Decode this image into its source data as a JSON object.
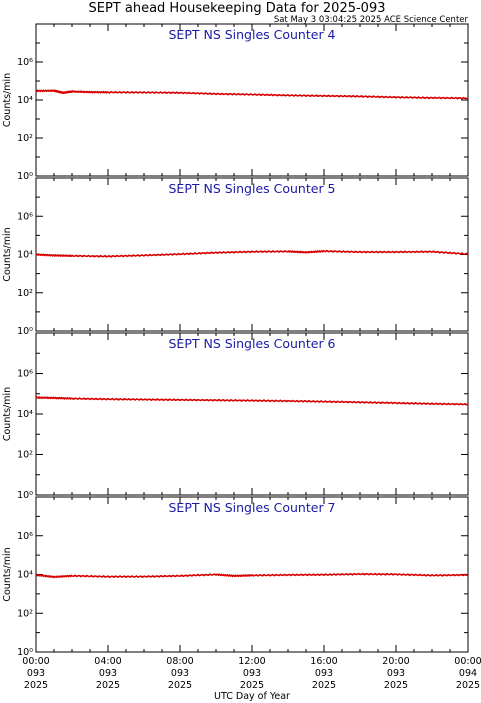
{
  "header": {
    "title": "SEPT ahead Housekeeping Data for 2025-093",
    "subtitle": "Sat May  3 03:04:25 2025 ACE Science Center"
  },
  "colors": {
    "series": "#d60000",
    "panel_title": "#1a1aa6"
  },
  "x_axis": {
    "label": "UTC Day of Year",
    "ticks": [
      {
        "time": "00:00",
        "doy": "093",
        "year": "2025"
      },
      {
        "time": "04:00",
        "doy": "093",
        "year": "2025"
      },
      {
        "time": "08:00",
        "doy": "093",
        "year": "2025"
      },
      {
        "time": "12:00",
        "doy": "093",
        "year": "2025"
      },
      {
        "time": "16:00",
        "doy": "093",
        "year": "2025"
      },
      {
        "time": "20:00",
        "doy": "093",
        "year": "2025"
      },
      {
        "time": "00:00",
        "doy": "094",
        "year": "2025"
      }
    ]
  },
  "chart_data": [
    {
      "type": "line",
      "title": "SEPT NS Singles Counter 4",
      "ylabel": "Counts/min",
      "yscale": "log",
      "ylim": [
        1,
        100000000
      ],
      "ytick_labels": [
        "10⁰",
        "10²",
        "10⁴",
        "10⁶"
      ],
      "xlim": [
        0,
        24
      ],
      "series": [
        {
          "x": [
            0,
            1,
            1.5,
            2,
            3,
            4,
            6,
            8,
            10,
            12,
            14,
            16,
            18,
            20,
            22,
            24
          ],
          "y": [
            30000,
            31000,
            24000,
            28000,
            26000,
            25500,
            25000,
            24000,
            21000,
            19500,
            17500,
            16500,
            15500,
            14000,
            13000,
            12500
          ]
        }
      ]
    },
    {
      "type": "line",
      "title": "SEPT NS Singles Counter 5",
      "ylabel": "Counts/min",
      "yscale": "log",
      "ylim": [
        1,
        100000000
      ],
      "ytick_labels": [
        "10⁰",
        "10²",
        "10⁴",
        "10⁶"
      ],
      "xlim": [
        0,
        24
      ],
      "series": [
        {
          "x": [
            0,
            1,
            2,
            4,
            6,
            8,
            10,
            12,
            14,
            15,
            16,
            18,
            20,
            22,
            24
          ],
          "y": [
            10000,
            9000,
            8500,
            8000,
            9000,
            10500,
            12500,
            14000,
            14500,
            13000,
            15000,
            13500,
            13500,
            14000,
            10500
          ]
        }
      ]
    },
    {
      "type": "line",
      "title": "SEPT NS Singles Counter 6",
      "ylabel": "Counts/min",
      "yscale": "log",
      "ylim": [
        1,
        100000000
      ],
      "ytick_labels": [
        "10⁰",
        "10²",
        "10⁴",
        "10⁶"
      ],
      "xlim": [
        0,
        24
      ],
      "series": [
        {
          "x": [
            0,
            1,
            2,
            4,
            6,
            8,
            10,
            12,
            14,
            16,
            18,
            20,
            22,
            24
          ],
          "y": [
            65000,
            62000,
            58000,
            54000,
            52000,
            50000,
            48000,
            46000,
            44000,
            41000,
            38000,
            35000,
            32000,
            30000
          ]
        }
      ]
    },
    {
      "type": "line",
      "title": "SEPT NS Singles Counter 7",
      "ylabel": "Counts/min",
      "yscale": "log",
      "ylim": [
        1,
        100000000
      ],
      "ytick_labels": [
        "10⁰",
        "10²",
        "10⁴",
        "10⁶"
      ],
      "xlim": [
        0,
        24
      ],
      "series": [
        {
          "x": [
            0,
            1,
            2,
            4,
            6,
            8,
            10,
            11,
            12,
            14,
            16,
            18,
            20,
            22,
            24
          ],
          "y": [
            9500,
            7500,
            8500,
            7800,
            7800,
            8500,
            10000,
            8500,
            9000,
            9500,
            9800,
            10500,
            10200,
            9000,
            9500
          ]
        }
      ]
    }
  ]
}
